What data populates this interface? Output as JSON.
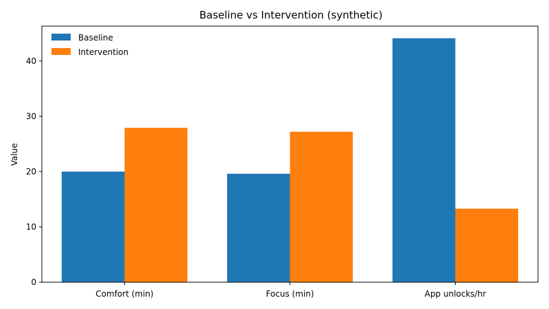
{
  "chart_data": {
    "type": "bar",
    "title": "Baseline vs Intervention (synthetic)",
    "xlabel": "",
    "ylabel": "Value",
    "categories": [
      "Comfort (min)",
      "Focus (min)",
      "App unlocks/hr"
    ],
    "series": [
      {
        "name": "Baseline",
        "color": "#1f77b4",
        "values": [
          20.0,
          19.6,
          44.1
        ]
      },
      {
        "name": "Intervention",
        "color": "#ff7f0e",
        "values": [
          27.9,
          27.2,
          13.3
        ]
      }
    ],
    "ylim": [
      0,
      46.3
    ],
    "yticks": [
      0,
      10,
      20,
      30,
      40
    ],
    "legend_position": "top-left",
    "grid": false
  }
}
